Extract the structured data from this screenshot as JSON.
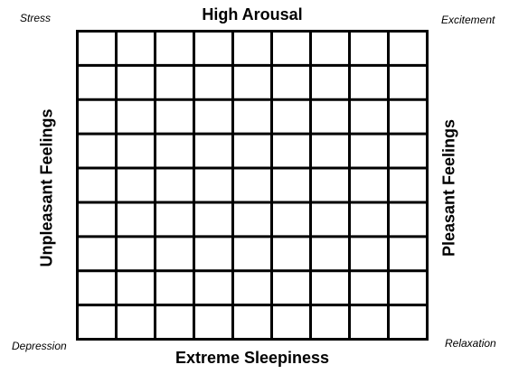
{
  "labels": {
    "top": "High Arousal",
    "bottom": "Extreme Sleepiness",
    "left": "Unpleasant Feelings",
    "right": "Pleasant Feelings"
  },
  "corners": {
    "top_left": "Stress",
    "top_right": "Excitement",
    "bottom_left": "Depression",
    "bottom_right": "Relaxation"
  },
  "grid": {
    "rows": 9,
    "cols": 9,
    "line_color": "#000000"
  }
}
